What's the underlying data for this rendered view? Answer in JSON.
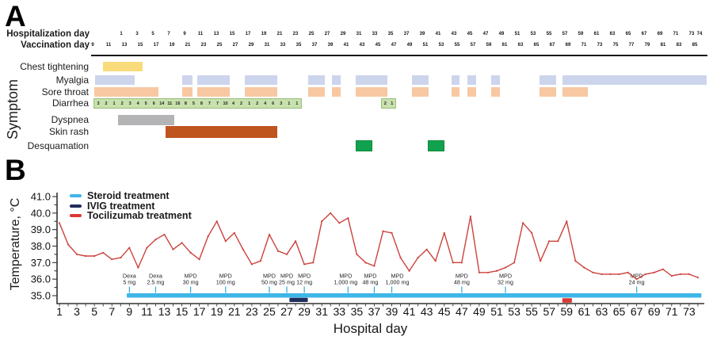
{
  "figure": {
    "panel_a_label": "A",
    "panel_b_label": "B"
  },
  "panel_a": {
    "y_axis_title": "Symptom",
    "header": {
      "hosp_label": "Hospitalization day",
      "vac_label": "Vaccination day",
      "hosp_days": [
        1,
        3,
        5,
        7,
        9,
        11,
        13,
        15,
        17,
        19,
        21,
        23,
        25,
        27,
        29,
        31,
        33,
        35,
        37,
        39,
        41,
        43,
        45,
        47,
        49,
        51,
        53,
        55,
        57,
        59,
        61,
        63,
        65,
        67,
        69,
        71,
        73,
        74
      ],
      "vac_days": [
        9,
        11,
        13,
        15,
        17,
        19,
        21,
        23,
        25,
        27,
        29,
        31,
        33,
        35,
        37,
        39,
        41,
        43,
        45,
        47,
        49,
        51,
        53,
        55,
        57,
        59,
        61,
        63,
        65,
        67,
        69,
        71,
        73,
        75,
        77,
        79,
        81,
        83,
        85
      ]
    },
    "rows": [
      {
        "name": "Chest tightening",
        "color": "#F9DB7B",
        "bars": [
          {
            "start": -1.3,
            "end": 3.7
          }
        ]
      },
      {
        "name": "Myalgia",
        "color": "#CDD5ED",
        "bars": [
          {
            "start": -2.3,
            "end": 2.7
          },
          {
            "start": 8.7,
            "end": 10.0
          },
          {
            "start": 10.6,
            "end": 14.7
          },
          {
            "start": 16.6,
            "end": 20.7
          },
          {
            "start": 24.6,
            "end": 26.7
          },
          {
            "start": 27.6,
            "end": 28.7
          },
          {
            "start": 30.6,
            "end": 34.6
          },
          {
            "start": 37.7,
            "end": 39.8
          },
          {
            "start": 42.7,
            "end": 43.7
          },
          {
            "start": 44.7,
            "end": 45.8
          },
          {
            "start": 47.7,
            "end": 48.8
          },
          {
            "start": 53.8,
            "end": 55.9
          },
          {
            "start": 56.7,
            "end": 74.9
          }
        ]
      },
      {
        "name": "Sore throat",
        "color": "#F7C8A2",
        "bars": [
          {
            "start": -2.4,
            "end": 5.7
          },
          {
            "start": 8.7,
            "end": 10.0
          },
          {
            "start": 10.6,
            "end": 14.7
          },
          {
            "start": 16.6,
            "end": 20.7
          },
          {
            "start": 24.6,
            "end": 26.7
          },
          {
            "start": 27.6,
            "end": 28.7
          },
          {
            "start": 30.6,
            "end": 34.6
          },
          {
            "start": 37.7,
            "end": 39.8
          },
          {
            "start": 42.7,
            "end": 43.7
          },
          {
            "start": 44.7,
            "end": 45.8
          },
          {
            "start": 47.7,
            "end": 48.8
          },
          {
            "start": 53.8,
            "end": 55.9
          },
          {
            "start": 56.7,
            "end": 59.9
          }
        ]
      },
      {
        "name": "Diarrhea",
        "color": "#C8E1AD",
        "border": "#99BE7C",
        "bars": [
          {
            "start": -2.5,
            "end": 23.8,
            "counts": [
              3,
              2,
              1,
              2,
              3,
              4,
              5,
              6,
              14,
              11,
              16,
              8,
              5,
              8,
              7,
              7,
              10,
              4,
              2,
              1,
              2,
              4,
              6,
              3,
              1,
              1
            ]
          },
          {
            "start": 33.8,
            "end": 35.7,
            "counts": [
              2,
              1
            ]
          }
        ]
      },
      {
        "name": "Dyspnea",
        "color": "#B4B4B6",
        "bars": [
          {
            "start": 0.6,
            "end": 7.7
          }
        ]
      },
      {
        "name": "Skin rash",
        "color": "#BF541F",
        "bars": [
          {
            "start": 6.6,
            "end": 20.7
          }
        ]
      },
      {
        "name": "Desquamation",
        "color": "#12A24D",
        "border": "#0B8A3E",
        "bars": [
          {
            "start": 30.6,
            "end": 32.7
          },
          {
            "start": 39.7,
            "end": 41.8
          }
        ]
      }
    ]
  },
  "chart_data": {
    "type": "line",
    "title": "",
    "xlabel": "Hospital day",
    "ylabel": "Temperature, °C",
    "ylim": [
      35.0,
      41.0
    ],
    "x_range": [
      1,
      74
    ],
    "grid": false,
    "legend_position": "top-left",
    "ytick_labels": [
      "41.0",
      "40.0",
      "39.0",
      "38.0",
      "37.0",
      "36.0",
      "35.0"
    ],
    "xticks": [
      1,
      3,
      5,
      7,
      9,
      11,
      13,
      15,
      17,
      19,
      21,
      23,
      25,
      27,
      29,
      31,
      33,
      35,
      37,
      39,
      41,
      43,
      45,
      47,
      49,
      51,
      53,
      55,
      57,
      59,
      61,
      63,
      65,
      67,
      69,
      71,
      73
    ],
    "series": [
      {
        "name": "Body temperature",
        "color": "#CC423B",
        "values": [
          39.4,
          38.1,
          37.5,
          37.4,
          37.4,
          37.6,
          37.2,
          37.3,
          37.9,
          36.7,
          37.9,
          38.4,
          38.7,
          37.8,
          38.2,
          37.6,
          37.2,
          38.6,
          39.5,
          38.3,
          38.8,
          37.8,
          36.9,
          37.1,
          38.7,
          37.7,
          37.5,
          38.3,
          36.9,
          37.0,
          39.5,
          40.0,
          39.4,
          39.7,
          37.5,
          37.0,
          36.8,
          38.9,
          38.8,
          37.3,
          36.5,
          37.3,
          37.8,
          37.1,
          38.8,
          37.0,
          37.0,
          39.8,
          36.4,
          36.4,
          36.5,
          36.7,
          37.0,
          39.4,
          38.8,
          37.1,
          38.3,
          38.3,
          39.5,
          37.1,
          36.7,
          36.4,
          36.3,
          36.3,
          36.3,
          36.4,
          36.0,
          36.3,
          36.4,
          36.6,
          36.2,
          36.3,
          36.3,
          36.1
        ]
      }
    ],
    "legend": [
      {
        "label": "Steroid treatment",
        "color": "#3FB6E8"
      },
      {
        "label": "IVIG treatment",
        "color": "#1F2D5A"
      },
      {
        "label": "Tocilizumab treatment",
        "color": "#DB3832"
      }
    ],
    "treatment_bars": [
      {
        "name": "Steroid treatment",
        "color": "#3FB6E8",
        "start_day": 8.7,
        "end_day": 74.4
      },
      {
        "name": "IVIG treatment",
        "color": "#1F2D5A",
        "start_day": 27.3,
        "end_day": 29.4
      },
      {
        "name": "Tocilizumab treatment",
        "color": "#DB3832",
        "start_day": 58.5,
        "end_day": 59.6
      }
    ],
    "annotations": [
      {
        "drug": "Dexa",
        "dose": "5 mg",
        "day": 9
      },
      {
        "drug": "Dexa",
        "dose": "2.5 mg",
        "day": 12
      },
      {
        "drug": "MPD",
        "dose": "30 mg",
        "day": 16
      },
      {
        "drug": "MPD",
        "dose": "100 mg",
        "day": 20
      },
      {
        "drug": "MPD",
        "dose": "50 mg",
        "day": 25
      },
      {
        "drug": "MPD",
        "dose": "25 mg",
        "day": 27
      },
      {
        "drug": "MPD",
        "dose": "12 mg",
        "day": 29
      },
      {
        "drug": "MPD",
        "dose": "1,000 mg",
        "day": 34
      },
      {
        "drug": "MPD",
        "dose": "48 mg",
        "day": 37
      },
      {
        "drug": "MPD",
        "dose": "1,000 mg",
        "day": 39
      },
      {
        "drug": "MPD",
        "dose": "48 mg",
        "day": 47
      },
      {
        "drug": "MPD",
        "dose": "32 mg",
        "day": 52
      },
      {
        "drug": "MPD",
        "dose": "24 mg",
        "day": 67
      }
    ]
  }
}
